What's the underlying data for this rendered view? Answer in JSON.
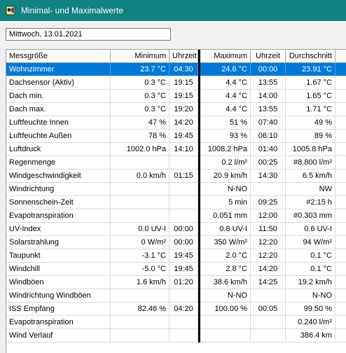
{
  "window": {
    "title": "Minimal- und Maximalwerte",
    "icon": "app-icon"
  },
  "date_field": "Mittwoch, 13.01.2021",
  "columns": [
    "Messgröße",
    "Minimum",
    "Uhrzeit",
    "Maximum",
    "Uhrzeit",
    "Durchschnitt"
  ],
  "selected_row": 0,
  "rows": [
    [
      "Wohnzimmer",
      "23.7 °C",
      "04:30",
      "24.6 °C",
      "00:00",
      "23.91 °C"
    ],
    [
      "Dachsensor (Aktiv)",
      "0.3 °C",
      "19:15",
      "4.4 °C",
      "13:55",
      "1.67 °C"
    ],
    [
      "Dach min.",
      "0.3 °C",
      "19:15",
      "4.4 °C",
      "14:00",
      "1.65 °C"
    ],
    [
      "Dach max.",
      "0.3 °C",
      "19:20",
      "4.4 °C",
      "13:55",
      "1.71 °C"
    ],
    [
      "Luftfeuchte Innen",
      "47 %",
      "14:20",
      "51 %",
      "07:40",
      "49 %"
    ],
    [
      "Luftfeuchte Außen",
      "78 %",
      "19:45",
      "93 %",
      "06:10",
      "89 %"
    ],
    [
      "Luftdruck",
      "1002.0 hPa",
      "14:10",
      "1008.2 hPa",
      "01:40",
      "1005.8 hPa"
    ],
    [
      "Regenmenge",
      "",
      "",
      "0.2 l/m²",
      "00:25",
      "#8.800 l/m²"
    ],
    [
      "Windgeschwindigkeit",
      "0.0 km/h",
      "01:15",
      "20.9 km/h",
      "14:30",
      "6.5 km/h"
    ],
    [
      "Windrichtung",
      "",
      "",
      "N-NO",
      "",
      "NW"
    ],
    [
      "Sonnenschein-Zeit",
      "",
      "",
      "5 min",
      "09:25",
      "#2:15 h"
    ],
    [
      "Evapotranspiration",
      "",
      "",
      "0.051 mm",
      "12:00",
      "#0.303 mm"
    ],
    [
      "UV-Index",
      "0.0 UV-I",
      "00:00",
      "0.8 UV-I",
      "11:50",
      "0.6 UV-I"
    ],
    [
      "Solarstrahlung",
      "0 W/m²",
      "00:00",
      "350 W/m²",
      "12:20",
      "94 W/m²"
    ],
    [
      "Taupunkt",
      "-3.1 °C",
      "19:45",
      "2.0 °C",
      "12:20",
      "0.1 °C"
    ],
    [
      "Windchill",
      "-5.0 °C",
      "19:45",
      "2.8 °C",
      "14:20",
      "0.1 °C"
    ],
    [
      "Windböen",
      "1.6 km/h",
      "01:20",
      "38.6 km/h",
      "14:25",
      "19.2 km/h"
    ],
    [
      "Windrichtung Windböen",
      "",
      "",
      "N-NO",
      "",
      "N-NO"
    ],
    [
      "ISS Empfang",
      "82.46 %",
      "04:20",
      "100.00 %",
      "00:05",
      "99.50 %"
    ],
    [
      "Evapotranspiration",
      "",
      "",
      "",
      "",
      "0.240 l/m²"
    ],
    [
      "Wind Verlauf",
      "",
      "",
      "",
      "",
      "386.4 km"
    ]
  ]
}
